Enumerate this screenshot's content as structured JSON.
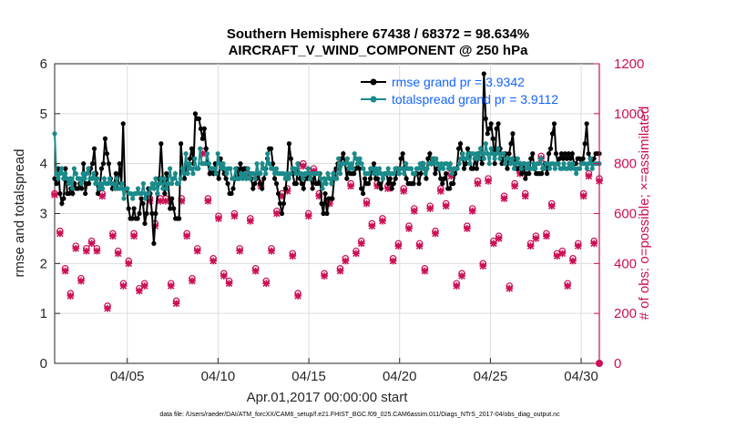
{
  "chart_data": {
    "type": "line",
    "title_line1": "Southern Hemisphere 67438 / 68372 = 98.634%",
    "title_line2": "AIRCRAFT_V_WIND_COMPONENT @ 250 hPa",
    "xlabel": "Apr.01,2017 00:00:00 start",
    "ylabel_left": "rmse and totalspread",
    "ylabel_right": "# of obs: o=possible; ×=assimilated",
    "xlim": [
      1,
      31
    ],
    "ylim_left": [
      0,
      6
    ],
    "ylim_right": [
      0,
      1200
    ],
    "x_ticks": [
      5,
      10,
      15,
      20,
      25,
      30
    ],
    "x_tick_labels": [
      "04/05",
      "04/10",
      "04/15",
      "04/20",
      "04/25",
      "04/30"
    ],
    "y_ticks_left": [
      "0",
      "1",
      "2",
      "3",
      "4",
      "5",
      "6"
    ],
    "y_ticks_right": [
      "0",
      "200",
      "400",
      "600",
      "800",
      "1000",
      "1200"
    ],
    "legend": [
      "rmse grand pr = 3.9342",
      "totalspread grand pr = 3.9112"
    ],
    "footnote": "data file: /Users/raeder/DAI/ATM_forcXX/CAM6_setup/f.e21.FHIST_BGC.f09_025.CAM6assim.011/Diags_NTrS_2017-04/obs_diag_output.nc",
    "series": [
      {
        "name": "rmse",
        "color": "#000000",
        "values": [
          3.7,
          3.6,
          3.9,
          3.4,
          3.2,
          3.3,
          3.9,
          3.4,
          3.4,
          3.5,
          3.4,
          3.6,
          3.5,
          3.5,
          3.6,
          3.5,
          4.0,
          3.4,
          3.6,
          3.6,
          3.9,
          4.0,
          4.3,
          3.8,
          3.4,
          3.5,
          3.9,
          4.0,
          4.5,
          4.2,
          4.0,
          3.7,
          3.5,
          3.6,
          3.8,
          3.5,
          4.0,
          3.6,
          4.8,
          3.5,
          3.5,
          3.1,
          2.9,
          2.9,
          3.1,
          2.9,
          2.9,
          3.0,
          3.3,
          3.2,
          2.8,
          3.0,
          3.5,
          3.4,
          3.0,
          2.4,
          3.0,
          3.4,
          3.7,
          4.4,
          3.7,
          3.4,
          3.8,
          3.6,
          3.1,
          3.3,
          3.1,
          2.9,
          2.9,
          2.9,
          4.4,
          3.9,
          3.7,
          4.0,
          3.9,
          4.1,
          4.3,
          4.0,
          5.0,
          4.9,
          4.9,
          4.7,
          4.5,
          4.7,
          4.3,
          4.0,
          3.8,
          3.9,
          3.8,
          4.0,
          3.8,
          3.7,
          4.1,
          3.9,
          3.8,
          3.7,
          3.6,
          3.4,
          3.4,
          3.5,
          3.7,
          3.9,
          3.7,
          4.0,
          3.8,
          3.9,
          3.9,
          3.9,
          3.8,
          3.7,
          3.5,
          3.6,
          3.7,
          3.8,
          3.6,
          3.5,
          3.7,
          3.9,
          4.1,
          4.3,
          4.3,
          4.0,
          3.7,
          3.6,
          3.4,
          3.2,
          3.0,
          3.2,
          3.5,
          3.8,
          4.4,
          4.1,
          3.8,
          3.6,
          3.6,
          4.0,
          3.7,
          3.6,
          3.5,
          3.7,
          3.7,
          3.8,
          3.7,
          3.5,
          3.8,
          3.6,
          3.6,
          3.8,
          3.2,
          3.0,
          3.4,
          3.0,
          3.3,
          3.3,
          3.3,
          3.7,
          3.9,
          4.0,
          3.9,
          4.1,
          4.2,
          4.0,
          3.7,
          3.9,
          3.8,
          3.8,
          3.8,
          3.9,
          4.0,
          3.9,
          3.5,
          3.4,
          3.7,
          3.6,
          3.6,
          3.7,
          3.9,
          4.0,
          3.7,
          3.7,
          3.6,
          3.5,
          3.7,
          3.8,
          3.8,
          3.6,
          3.7,
          3.5,
          3.6,
          3.7,
          3.9,
          3.8,
          4.1,
          4.2,
          3.9,
          3.7,
          3.6,
          3.6,
          3.6,
          3.6,
          3.8,
          3.8,
          3.6,
          3.8,
          4.0,
          3.9,
          3.7,
          4.1,
          4.2,
          4.0,
          4.1,
          3.8,
          3.9,
          3.9,
          3.7,
          3.6,
          3.7,
          3.8,
          3.5,
          3.5,
          3.6,
          3.6,
          3.8,
          3.9,
          4.3,
          4.4,
          4.2,
          3.9,
          4.0,
          4.3,
          4.2,
          3.9,
          3.9,
          4.1,
          3.9,
          4.2,
          4.1,
          4.0,
          5.8,
          4.9,
          4.6,
          4.7,
          4.8,
          4.5,
          4.0,
          4.7,
          4.8,
          4.3,
          4.0,
          4.1,
          4.2,
          3.9,
          4.2,
          4.4,
          4.6,
          4.1,
          3.9,
          3.9,
          4.0,
          3.8,
          4.0,
          3.7,
          3.8,
          3.8,
          4.1,
          4.2,
          3.9,
          3.8,
          3.8,
          3.8,
          3.8,
          3.9,
          4.0,
          3.8,
          4.2,
          4.3,
          4.6,
          4.8,
          4.2,
          4.0,
          4.1,
          4.2,
          4.1,
          4.2,
          4.1,
          4.2,
          4.1,
          4.2,
          4.0,
          4.0,
          4.1,
          4.1,
          4.0,
          4.1,
          4.4,
          4.8,
          4.2,
          4.1,
          4.0,
          4.1,
          4.2,
          4.2,
          4.2
        ]
      },
      {
        "name": "totalspread",
        "color": "#1a8a8a",
        "values": [
          4.6,
          3.8,
          3.7,
          3.8,
          3.9,
          3.7,
          3.8,
          3.7,
          3.6,
          3.7,
          3.5,
          3.9,
          3.8,
          3.7,
          3.7,
          3.6,
          3.8,
          3.7,
          3.8,
          3.9,
          3.7,
          3.7,
          3.8,
          3.6,
          3.7,
          3.5,
          3.6,
          3.5,
          3.7,
          3.6,
          3.6,
          3.7,
          3.6,
          3.6,
          3.5,
          3.7,
          3.5,
          3.5,
          3.6,
          3.3,
          3.5,
          3.5,
          3.4,
          3.4,
          3.3,
          3.4,
          3.4,
          3.5,
          3.4,
          3.4,
          3.6,
          3.3,
          3.4,
          3.4,
          3.5,
          3.6,
          3.5,
          3.7,
          3.4,
          3.6,
          3.7,
          3.5,
          3.7,
          3.5,
          3.6,
          3.9,
          3.6,
          3.7,
          3.8,
          3.6,
          3.6,
          3.7,
          3.9,
          3.8,
          4.2,
          3.8,
          4.0,
          3.9,
          3.8,
          4.1,
          3.9,
          3.9,
          4.3,
          4.0,
          4.0,
          4.0,
          4.2,
          4.0,
          3.9,
          3.9,
          3.9,
          3.8,
          4.2,
          4.0,
          3.9,
          4.0,
          3.9,
          3.8,
          3.9,
          3.9,
          3.7,
          3.7,
          3.9,
          3.7,
          3.7,
          3.8,
          3.7,
          3.8,
          3.7,
          3.9,
          3.7,
          3.8,
          3.8,
          3.7,
          4.0,
          3.8,
          3.8,
          4.0,
          3.9,
          3.8,
          4.2,
          4.0,
          3.9,
          3.9,
          3.8,
          3.9,
          3.8,
          3.8,
          3.8,
          3.8,
          3.7,
          3.8,
          3.7,
          3.8,
          3.9,
          3.9,
          3.8,
          4.0,
          3.8,
          3.8,
          3.7,
          3.8,
          3.8,
          3.9,
          3.7,
          3.8,
          3.8,
          3.8,
          3.8,
          3.8,
          3.7,
          3.5,
          3.7,
          3.6,
          3.8,
          3.7,
          3.6,
          3.8,
          3.7,
          3.7,
          4.1,
          3.8,
          4.0,
          4.0,
          4.0,
          4.1,
          3.9,
          4.0,
          3.9,
          4.2,
          4.1,
          4.0,
          4.1,
          4.0,
          3.9,
          3.8,
          3.8,
          3.8,
          3.9,
          3.9,
          3.8,
          3.9,
          3.8,
          3.9,
          3.8,
          3.7,
          3.8,
          3.8,
          3.9,
          3.8,
          3.8,
          3.8,
          3.9,
          3.9,
          3.8,
          3.9,
          3.9,
          3.8,
          4.0,
          3.9,
          3.9,
          3.9,
          3.8,
          3.8,
          3.9,
          3.9,
          4.0,
          3.9,
          4.0,
          3.8,
          3.9,
          4.0,
          4.0,
          4.1,
          4.0,
          4.1,
          4.0,
          3.9,
          4.0,
          3.9,
          4.0,
          4.0,
          3.9,
          4.0,
          3.8,
          3.9,
          3.9,
          3.9,
          4.0,
          4.1,
          4.2,
          4.1,
          4.1,
          4.2,
          4.0,
          4.2,
          4.2,
          4.1,
          4.2,
          4.1,
          4.3,
          4.2,
          4.1,
          4.4,
          4.2,
          4.0,
          4.3,
          4.2,
          4.1,
          4.2,
          4.3,
          4.1,
          4.2,
          4.2,
          4.0,
          4.1,
          4.1,
          4.0,
          4.1,
          3.9,
          4.0,
          4.1,
          4.0,
          3.9,
          4.0,
          4.0,
          3.9,
          4.0,
          3.9,
          3.9,
          4.0,
          3.9,
          4.0,
          4.0,
          4.1,
          3.9,
          3.9,
          4.0,
          4.0,
          3.9,
          4.0,
          4.0,
          3.9,
          4.0,
          4.0,
          3.9,
          3.9,
          4.0,
          3.9,
          3.9,
          4.0,
          3.9,
          4.0,
          3.9,
          3.8,
          3.9,
          3.9,
          4.0,
          4.0,
          4.0,
          3.9,
          4.0,
          4.1,
          3.9,
          4.0,
          4.0,
          4.0,
          4.0
        ]
      }
    ],
    "obs_possible": [
      680,
      530,
      380,
      280,
      470,
      340,
      460,
      490,
      460,
      680,
      230,
      520,
      450,
      320,
      410,
      520,
      300,
      320,
      660,
      560,
      660,
      660,
      320,
      250,
      660,
      520,
      340,
      460,
      850,
      660,
      420,
      590,
      360,
      330,
      600,
      460,
      760,
      580,
      380,
      720,
      330,
      460,
      610,
      680,
      700,
      440,
      280,
      800,
      600,
      780,
      680,
      360,
      650,
      760,
      380,
      420,
      720,
      450,
      490,
      650,
      560,
      720,
      580,
      710,
      420,
      480,
      700,
      550,
      620,
      480,
      380,
      630,
      530,
      700,
      640,
      760,
      320,
      360,
      550,
      620,
      730,
      400,
      740,
      490,
      510,
      670,
      310,
      720,
      770,
      680,
      480,
      510,
      830,
      520,
      640,
      440,
      450,
      320,
      420,
      480,
      680,
      760,
      490,
      740
    ],
    "obs_assimilated": [
      675,
      520,
      370,
      270,
      460,
      330,
      450,
      480,
      450,
      670,
      220,
      510,
      440,
      310,
      400,
      510,
      290,
      310,
      650,
      550,
      650,
      650,
      310,
      240,
      650,
      510,
      330,
      450,
      840,
      650,
      410,
      580,
      350,
      320,
      590,
      450,
      750,
      570,
      370,
      710,
      320,
      450,
      600,
      670,
      690,
      430,
      270,
      790,
      590,
      770,
      670,
      350,
      640,
      750,
      370,
      410,
      710,
      440,
      480,
      640,
      550,
      710,
      570,
      700,
      410,
      470,
      690,
      540,
      610,
      470,
      370,
      620,
      520,
      690,
      630,
      750,
      310,
      350,
      540,
      610,
      720,
      390,
      730,
      480,
      500,
      660,
      300,
      710,
      760,
      670,
      470,
      500,
      820,
      510,
      630,
      430,
      440,
      310,
      410,
      470,
      670,
      750,
      480,
      730
    ],
    "obs_marker_colors": {
      "possible": "#cc0f55",
      "assimilated": "#cc0f55"
    }
  }
}
